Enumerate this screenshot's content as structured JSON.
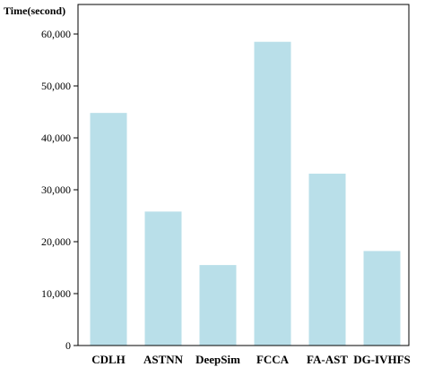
{
  "chart_data": {
    "type": "bar",
    "title": "",
    "ylabel": "Time(second)",
    "xlabel": "",
    "categories": [
      "CDLH",
      "ASTNN",
      "DeepSim",
      "FCCA",
      "FA-AST",
      "DG-IVHFS"
    ],
    "values": [
      44800,
      25800,
      15500,
      58500,
      33100,
      18200
    ],
    "ylim": [
      0,
      60000
    ],
    "yticks": [
      0,
      10000,
      20000,
      30000,
      40000,
      50000,
      60000
    ],
    "ytick_labels": [
      "0",
      "10,000",
      "20,000",
      "30,000",
      "40,000",
      "50,000",
      "60,000"
    ],
    "bar_color": "#b9dfe9",
    "grid": false,
    "legend": "none"
  }
}
